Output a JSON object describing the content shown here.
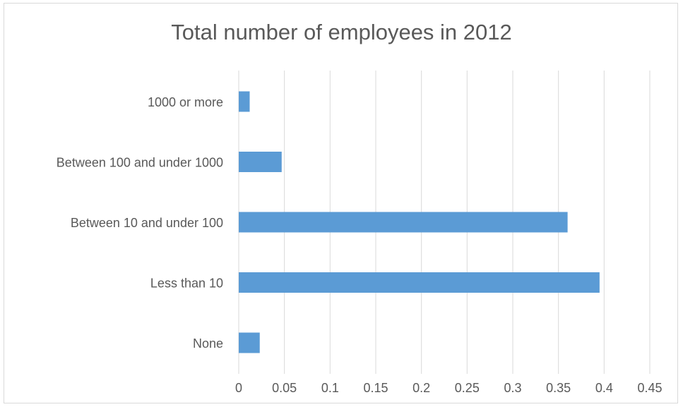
{
  "chart_data": {
    "type": "bar",
    "orientation": "horizontal",
    "title": "Total number of employees in 2012",
    "xlabel": "",
    "ylabel": "",
    "categories": [
      "1000 or more",
      "Between 100 and under 1000",
      "Between 10 and under 100",
      "Less than 10",
      "None"
    ],
    "values": [
      0.012,
      0.047,
      0.36,
      0.395,
      0.023
    ],
    "xlim": [
      0,
      0.45
    ],
    "x_ticks": [
      "0",
      "0.05",
      "0.1",
      "0.15",
      "0.2",
      "0.25",
      "0.3",
      "0.35",
      "0.4",
      "0.45"
    ],
    "grid": true,
    "legend": "none",
    "bar_color": "#5b9bd5",
    "grid_color": "#d9d9d9"
  }
}
